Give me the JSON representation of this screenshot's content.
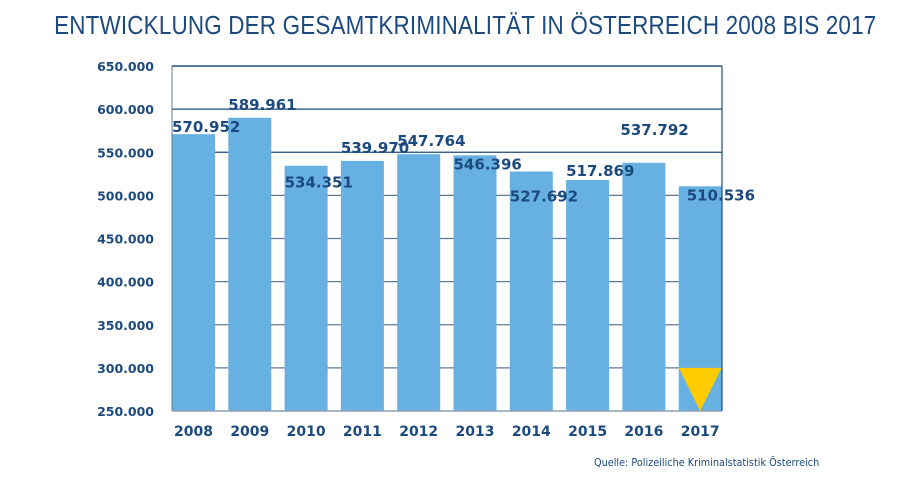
{
  "chart_data": {
    "type": "bar",
    "title": "ENTWICKLUNG DER GESAMTKRIMINALITÄT IN ÖSTERREICH 2008 BIS 2017",
    "xlabel": "",
    "ylabel": "",
    "categories": [
      "2008",
      "2009",
      "2010",
      "2011",
      "2012",
      "2013",
      "2014",
      "2015",
      "2016",
      "2017"
    ],
    "values": [
      570952,
      589961,
      534351,
      539970,
      547764,
      546396,
      527692,
      517869,
      537792,
      510536
    ],
    "value_labels": [
      "570.952",
      "589.961",
      "534.351",
      "539.970",
      "547.764",
      "546.396",
      "527.692",
      "517.869",
      "537.792",
      "510.536"
    ],
    "ylim": [
      250000,
      650000
    ],
    "yticks": [
      250000,
      300000,
      350000,
      400000,
      450000,
      500000,
      550000,
      600000,
      650000
    ],
    "ytick_labels": [
      "250.000",
      "300.000",
      "350.000",
      "400.000",
      "450.000",
      "500.000",
      "550.000",
      "600.000",
      "650.000"
    ],
    "grid": true,
    "legend": "none",
    "bar_color": "#67b1e2",
    "text_color": "#1d4a7e",
    "highlight": {
      "category": "2017",
      "shape": "down-triangle",
      "color": "#fecb00",
      "meaning": "decrease"
    },
    "source": "Quelle:  Polizeiliche Kriminalstatistik Österreich"
  }
}
